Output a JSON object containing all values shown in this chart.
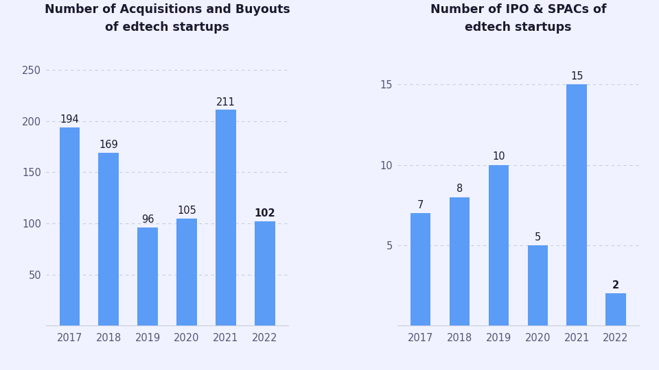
{
  "left_title": "Number of Acquisitions and Buyouts\nof edtech startups",
  "right_title": "Number of IPO & SPACs of\nedtech startups",
  "years": [
    "2017",
    "2018",
    "2019",
    "2020",
    "2021",
    "2022"
  ],
  "left_values": [
    194,
    169,
    96,
    105,
    211,
    102
  ],
  "right_values": [
    7,
    8,
    10,
    5,
    15,
    2
  ],
  "bar_color": "#5b9cf6",
  "left_yticks": [
    50,
    100,
    150,
    200,
    250
  ],
  "right_yticks": [
    5,
    10,
    15
  ],
  "left_ylim": [
    0,
    275
  ],
  "right_ylim": [
    0,
    17.5
  ],
  "background_color": "#f0f2ff",
  "plot_bg_color": "#f0f2ff",
  "title_fontsize": 12.5,
  "label_fontsize": 10.5,
  "tick_fontsize": 10.5,
  "last_bar_index": 5,
  "grid_color": "#c8cfe0",
  "spine_color": "#c8cfe0",
  "text_color": "#1a1a2e",
  "tick_color": "#555577"
}
